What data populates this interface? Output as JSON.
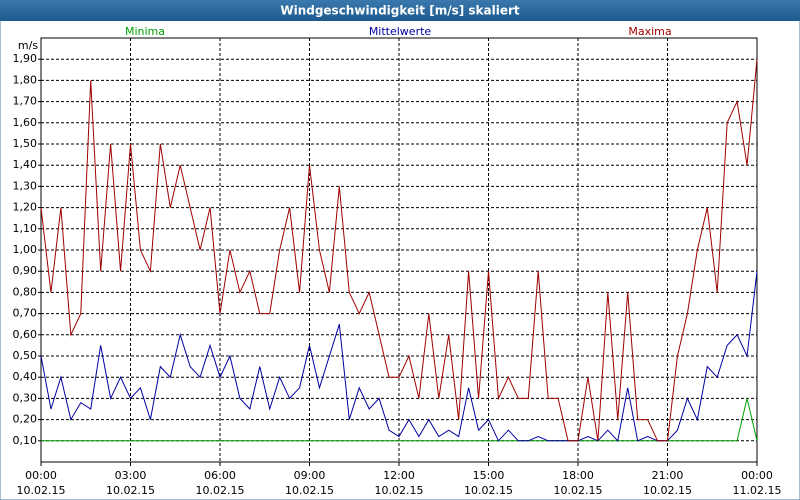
{
  "chart_data": {
    "type": "line",
    "title": "Windgeschwindigkeit [m/s] skaliert",
    "y_label": "m/s",
    "x": [
      0,
      20,
      40,
      60,
      80,
      100,
      120,
      140,
      160,
      180,
      200,
      220,
      240,
      260,
      280,
      300,
      320,
      340,
      360,
      380,
      400,
      420,
      440,
      460,
      480,
      500,
      520,
      540,
      560,
      580,
      600,
      620,
      640,
      660,
      680,
      700,
      720,
      740,
      760,
      780,
      800,
      820,
      840,
      860,
      880,
      900,
      920,
      940,
      960,
      980,
      1000,
      1020,
      1040,
      1060,
      1080,
      1100,
      1120,
      1140,
      1160,
      1180,
      1200,
      1220,
      1240,
      1260,
      1280,
      1300,
      1320,
      1340,
      1360,
      1380,
      1400,
      1420,
      1440
    ],
    "xlim": [
      0,
      1440
    ],
    "xticks": [
      {
        "value": 0,
        "label": "00:00"
      },
      {
        "value": 180,
        "label": "03:00"
      },
      {
        "value": 360,
        "label": "06:00"
      },
      {
        "value": 540,
        "label": "09:00"
      },
      {
        "value": 720,
        "label": "12:00"
      },
      {
        "value": 900,
        "label": "15:00"
      },
      {
        "value": 1080,
        "label": "18:00"
      },
      {
        "value": 1260,
        "label": "21:00"
      },
      {
        "value": 1440,
        "label": "00:00"
      }
    ],
    "xtick_dates": [
      "10.02.15",
      "10.02.15",
      "10.02.15",
      "10.02.15",
      "10.02.15",
      "10.02.15",
      "10.02.15",
      "10.02.15",
      "11.02.15"
    ],
    "ylim": [
      0,
      2.0
    ],
    "yticks": [
      {
        "value": 0.1,
        "label": "0,10"
      },
      {
        "value": 0.2,
        "label": "0,20"
      },
      {
        "value": 0.3,
        "label": "0,30"
      },
      {
        "value": 0.4,
        "label": "0,40"
      },
      {
        "value": 0.5,
        "label": "0,50"
      },
      {
        "value": 0.6,
        "label": "0,60"
      },
      {
        "value": 0.7,
        "label": "0,70"
      },
      {
        "value": 0.8,
        "label": "0,80"
      },
      {
        "value": 0.9,
        "label": "0,90"
      },
      {
        "value": 1.0,
        "label": "1,00"
      },
      {
        "value": 1.1,
        "label": "1,10"
      },
      {
        "value": 1.2,
        "label": "1,20"
      },
      {
        "value": 1.3,
        "label": "1,30"
      },
      {
        "value": 1.4,
        "label": "1,40"
      },
      {
        "value": 1.5,
        "label": "1,50"
      },
      {
        "value": 1.6,
        "label": "1,60"
      },
      {
        "value": 1.7,
        "label": "1,70"
      },
      {
        "value": 1.8,
        "label": "1,80"
      },
      {
        "value": 1.9,
        "label": "1,90"
      }
    ],
    "grid": true,
    "series": [
      {
        "name": "Minima",
        "color": "#00a000",
        "values": [
          0.1,
          0.1,
          0.1,
          0.1,
          0.1,
          0.1,
          0.1,
          0.1,
          0.1,
          0.1,
          0.1,
          0.1,
          0.1,
          0.1,
          0.1,
          0.1,
          0.1,
          0.1,
          0.1,
          0.1,
          0.1,
          0.1,
          0.1,
          0.1,
          0.1,
          0.1,
          0.1,
          0.1,
          0.1,
          0.1,
          0.1,
          0.1,
          0.1,
          0.1,
          0.1,
          0.1,
          0.1,
          0.1,
          0.1,
          0.1,
          0.1,
          0.1,
          0.1,
          0.1,
          0.1,
          0.1,
          0.1,
          0.1,
          0.1,
          0.1,
          0.1,
          0.1,
          0.1,
          0.1,
          0.1,
          0.1,
          0.1,
          0.1,
          0.1,
          0.1,
          0.1,
          0.1,
          0.1,
          0.1,
          0.1,
          0.1,
          0.1,
          0.1,
          0.1,
          0.1,
          0.1,
          0.3,
          0.1
        ]
      },
      {
        "name": "Mittelwerte",
        "color": "#0000a0",
        "values": [
          0.5,
          0.25,
          0.4,
          0.2,
          0.28,
          0.25,
          0.55,
          0.3,
          0.4,
          0.3,
          0.35,
          0.2,
          0.45,
          0.4,
          0.6,
          0.45,
          0.4,
          0.55,
          0.4,
          0.5,
          0.3,
          0.25,
          0.45,
          0.25,
          0.4,
          0.3,
          0.35,
          0.55,
          0.35,
          0.5,
          0.65,
          0.2,
          0.35,
          0.25,
          0.3,
          0.15,
          0.12,
          0.2,
          0.12,
          0.2,
          0.12,
          0.15,
          0.12,
          0.35,
          0.15,
          0.2,
          0.1,
          0.15,
          0.1,
          0.1,
          0.12,
          0.1,
          0.1,
          0.1,
          0.1,
          0.12,
          0.1,
          0.15,
          0.1,
          0.35,
          0.1,
          0.12,
          0.1,
          0.1,
          0.15,
          0.3,
          0.2,
          0.45,
          0.4,
          0.55,
          0.6,
          0.5,
          0.9
        ]
      },
      {
        "name": "Maxima",
        "color": "#a00000",
        "values": [
          1.2,
          0.8,
          1.2,
          0.6,
          0.7,
          1.8,
          0.9,
          1.5,
          0.9,
          1.5,
          1.0,
          0.9,
          1.5,
          1.2,
          1.4,
          1.2,
          1.0,
          1.2,
          0.7,
          1.0,
          0.8,
          0.9,
          0.7,
          0.7,
          1.0,
          1.2,
          0.8,
          1.4,
          1.0,
          0.8,
          1.3,
          0.8,
          0.7,
          0.8,
          0.6,
          0.4,
          0.4,
          0.5,
          0.3,
          0.7,
          0.3,
          0.6,
          0.2,
          0.9,
          0.3,
          0.9,
          0.3,
          0.4,
          0.3,
          0.3,
          0.9,
          0.3,
          0.3,
          0.1,
          0.1,
          0.4,
          0.1,
          0.8,
          0.2,
          0.8,
          0.2,
          0.2,
          0.1,
          0.1,
          0.5,
          0.7,
          1.0,
          1.2,
          0.8,
          1.6,
          1.7,
          1.4,
          1.9
        ]
      }
    ]
  }
}
